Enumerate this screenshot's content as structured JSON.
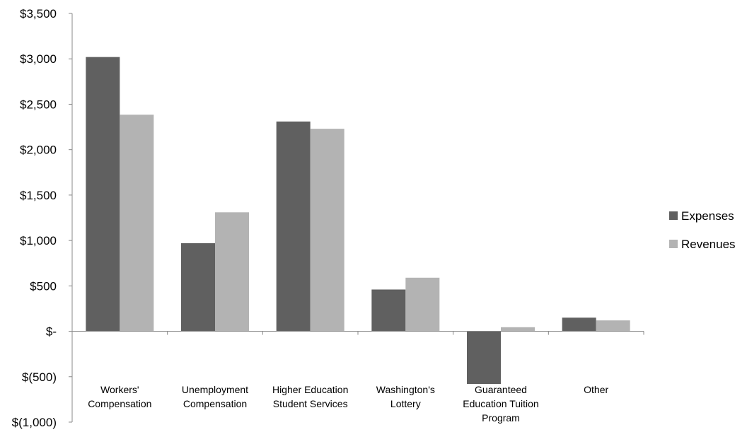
{
  "chart_data": {
    "type": "bar",
    "title": "",
    "xlabel": "",
    "ylabel": "",
    "ylim": [
      -1000,
      3500
    ],
    "y_ticks": [
      3500,
      3000,
      2500,
      2000,
      1500,
      1000,
      500,
      0,
      -500,
      -1000
    ],
    "y_tick_labels": [
      "$3,500",
      "$3,000",
      "$2,500",
      "$2,000",
      "$1,500",
      "$1,000",
      "$500",
      "$-",
      "$(500)",
      "$(1,000)"
    ],
    "grid": false,
    "legend_position": "right",
    "categories": [
      [
        "Workers'",
        "Compensation"
      ],
      [
        "Unemployment",
        "Compensation"
      ],
      [
        "Higher Education",
        "Student Services"
      ],
      [
        "Washington's",
        "Lottery"
      ],
      [
        "Guaranteed",
        "Education Tuition",
        "Program"
      ],
      [
        "Other"
      ]
    ],
    "series": [
      {
        "name": "Expenses",
        "color": "#606060",
        "values": [
          3020,
          970,
          2310,
          460,
          -580,
          150
        ]
      },
      {
        "name": "Revenues",
        "color": "#b3b3b3",
        "values": [
          2385,
          1310,
          2230,
          590,
          45,
          120
        ]
      }
    ]
  }
}
